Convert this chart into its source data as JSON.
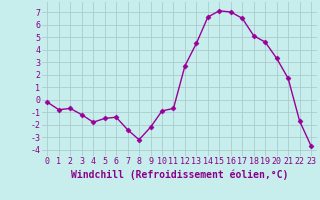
{
  "x": [
    0,
    1,
    2,
    3,
    4,
    5,
    6,
    7,
    8,
    9,
    10,
    11,
    12,
    13,
    14,
    15,
    16,
    17,
    18,
    19,
    20,
    21,
    22,
    23
  ],
  "y": [
    -0.2,
    -0.8,
    -0.7,
    -1.2,
    -1.8,
    -1.5,
    -1.4,
    -2.4,
    -3.2,
    -2.2,
    -0.9,
    -0.7,
    2.7,
    4.5,
    6.6,
    7.1,
    7.0,
    6.5,
    5.1,
    4.6,
    3.3,
    1.7,
    -1.7,
    -3.7
  ],
  "line_color": "#990099",
  "marker": "D",
  "markersize": 2.5,
  "linewidth": 1.0,
  "xlabel": "Windchill (Refroidissement éolien,°C)",
  "xlabel_fontsize": 7,
  "bg_color": "#c8eded",
  "grid_color": "#aacccc",
  "yticks": [
    -4,
    -3,
    -2,
    -1,
    0,
    1,
    2,
    3,
    4,
    5,
    6,
    7
  ],
  "xticks": [
    0,
    1,
    2,
    3,
    4,
    5,
    6,
    7,
    8,
    9,
    10,
    11,
    12,
    13,
    14,
    15,
    16,
    17,
    18,
    19,
    20,
    21,
    22,
    23
  ],
  "xlim": [
    -0.5,
    23.5
  ],
  "ylim": [
    -4.5,
    7.8
  ],
  "tick_fontsize": 6,
  "label_color": "#880088"
}
